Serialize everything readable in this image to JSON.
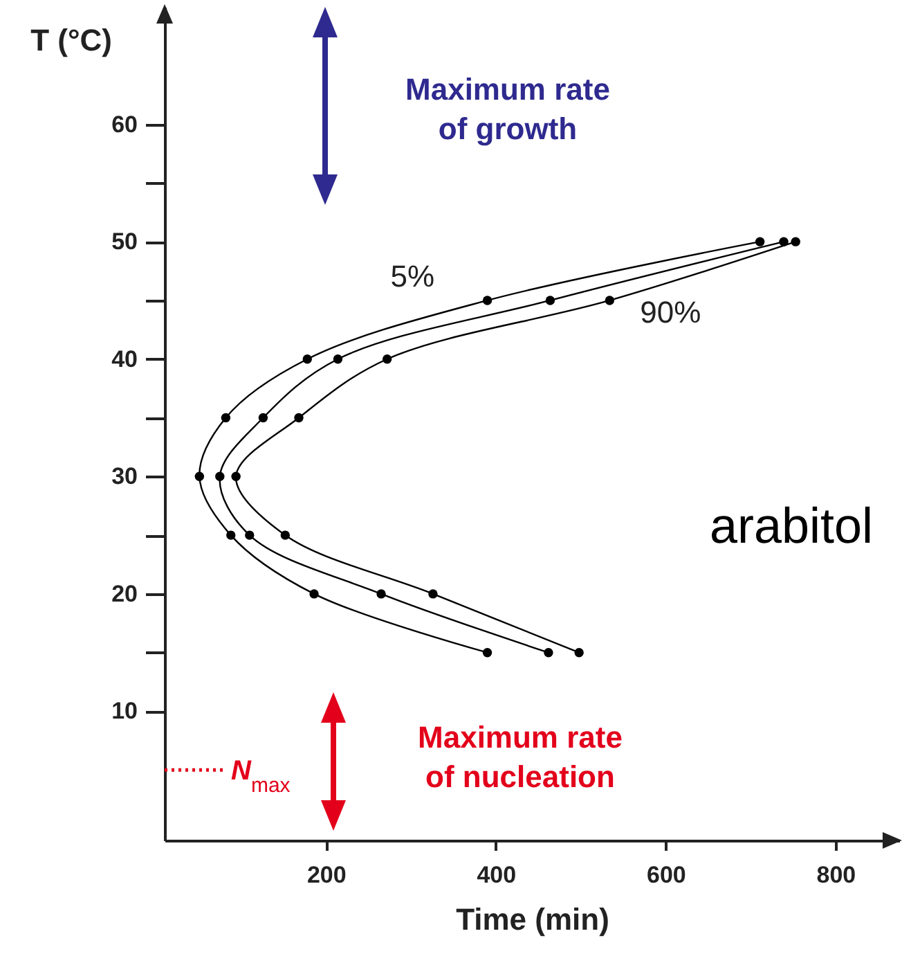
{
  "chart_data": {
    "type": "line",
    "xlabel": "Time (min)",
    "ylabel": "T (°C)",
    "xlim": [
      10,
      875
    ],
    "ylim": [
      -1,
      70
    ],
    "xticks": [
      200,
      400,
      600,
      800
    ],
    "yticks": [
      10,
      {
        "value": 15,
        "label": null
      },
      20,
      {
        "value": 25,
        "label": null
      },
      30,
      {
        "value": 35,
        "label": null
      },
      40,
      {
        "value": 45,
        "label": null
      },
      50,
      {
        "value": 55,
        "label": null
      },
      60
    ],
    "marker": "circle",
    "series": [
      {
        "name": "5%",
        "color": "#000000",
        "x": [
          711,
          390,
          178,
          82,
          51,
          88,
          186,
          390
        ],
        "values": [
          50,
          45,
          40,
          35,
          30,
          25,
          20,
          15
        ]
      },
      {
        "color": "#000000",
        "x": [
          739,
          464,
          214,
          126,
          75,
          110,
          265,
          462
        ],
        "values": [
          50,
          45,
          40,
          35,
          30,
          25,
          20,
          15
        ]
      },
      {
        "name": "90%",
        "color": "#000000",
        "x": [
          753,
          534,
          272,
          168,
          94,
          152,
          326,
          498
        ],
        "values": [
          50,
          45,
          40,
          35,
          30,
          25,
          20,
          15
        ]
      }
    ],
    "ref_lines": [
      {
        "axis": "y",
        "value": 5,
        "label": "N$_{max}$",
        "color": "#e3001b",
        "line_style": "dotted"
      }
    ],
    "annotations": [
      "Maximum rate of growth",
      "Maximum rate of nucleation",
      "arabitol"
    ]
  }
}
